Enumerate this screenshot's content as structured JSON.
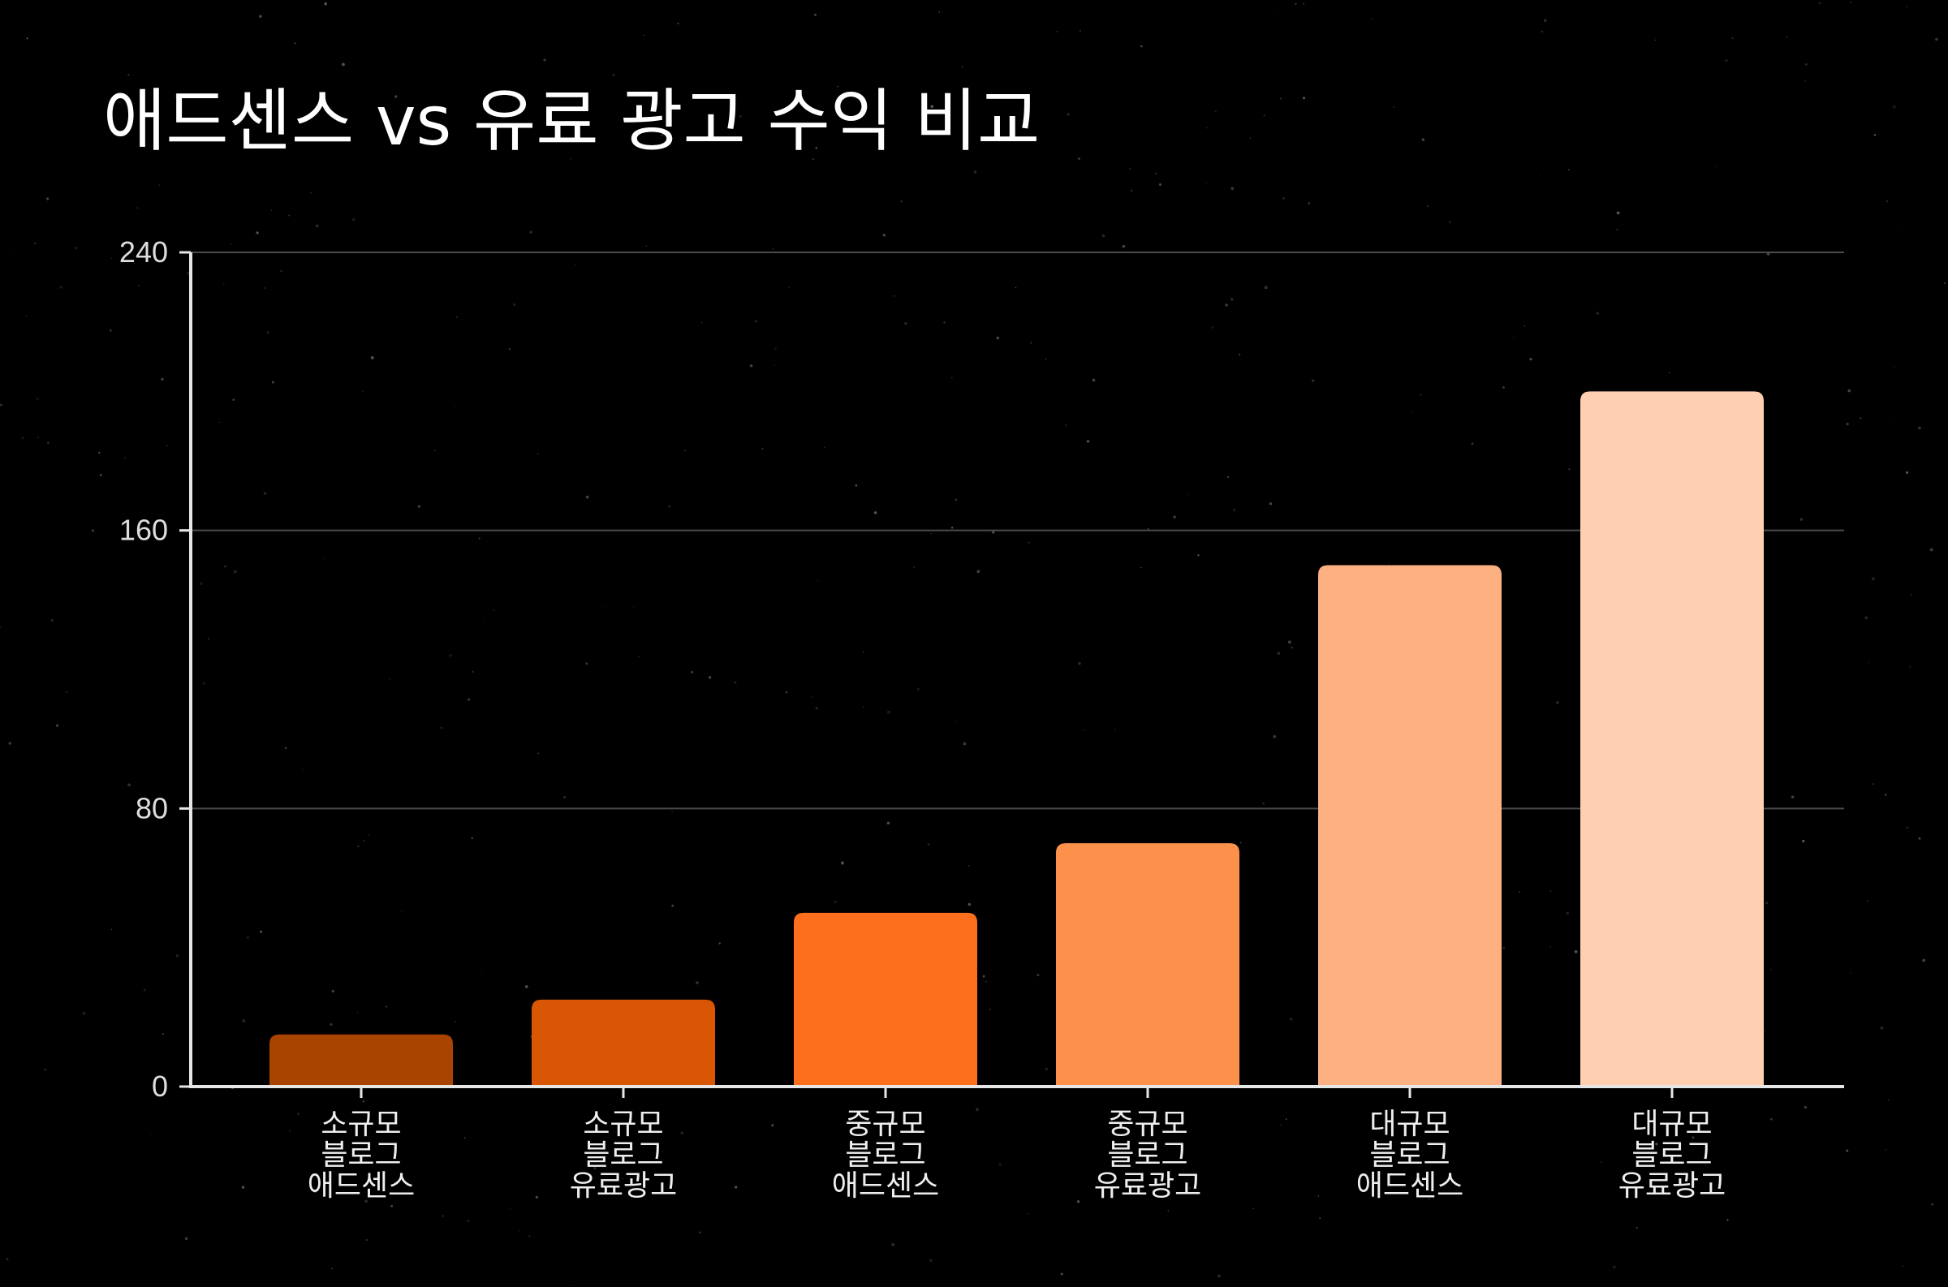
{
  "chart_data": {
    "type": "bar",
    "title": "애드센스 vs 유료 광고 수익 비교",
    "xlabel": "",
    "ylabel": "",
    "ylim": [
      0,
      240
    ],
    "yticks": [
      0,
      80,
      160,
      240
    ],
    "grid": true,
    "categories": [
      [
        "소규모",
        "블로그",
        "애드센스"
      ],
      [
        "소규모",
        "블로그",
        "유료광고"
      ],
      [
        "중규모",
        "블로그",
        "애드센스"
      ],
      [
        "중규모",
        "블로그",
        "유료광고"
      ],
      [
        "대규모",
        "블로그",
        "애드센스"
      ],
      [
        "대규모",
        "블로그",
        "유료광고"
      ]
    ],
    "values": [
      15,
      25,
      50,
      70,
      150,
      200
    ],
    "colors": [
      "#a84300",
      "#d85604",
      "#fd6f1c",
      "#fd914b",
      "#fdb183",
      "#fecfb1"
    ]
  },
  "style": {
    "background": "#000000",
    "axis_color": "#e6e6e6",
    "grid_color": "#4a4a4a"
  }
}
